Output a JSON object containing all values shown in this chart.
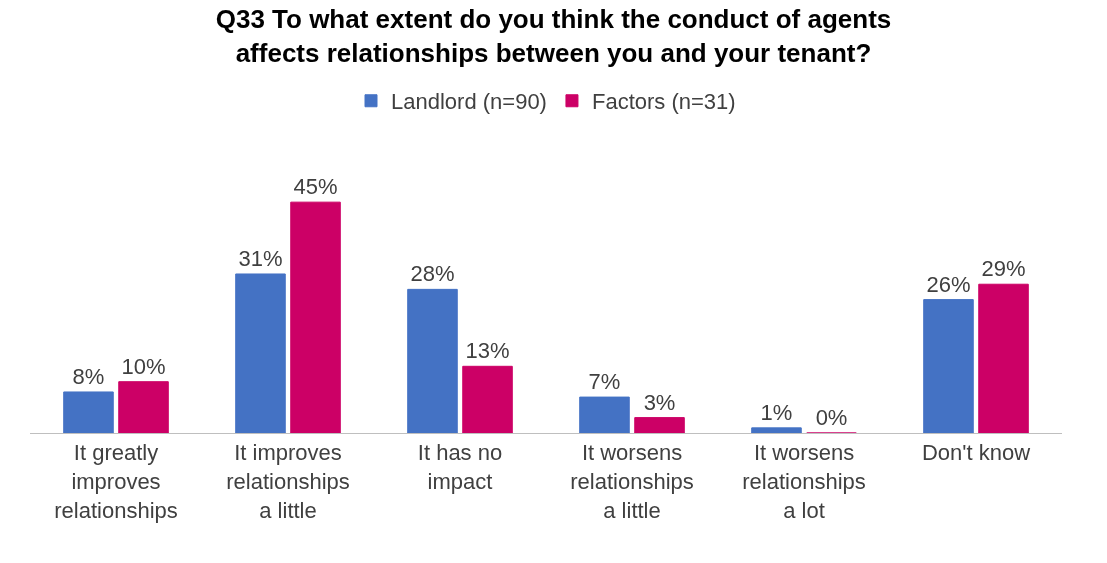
{
  "chart_data": {
    "type": "bar",
    "title": "Q33 To what extent do you think the conduct of agents affects relationships between you and your tenant?",
    "categories": [
      "It greatly improves relationships",
      "It improves relationships a little",
      "It has no impact",
      "It worsens relationships a little",
      "It worsens relationships a lot",
      "Don't know"
    ],
    "series": [
      {
        "name": "Landlord (n=90)",
        "color": "#4472c4",
        "values": [
          8,
          31,
          28,
          7,
          1,
          26
        ],
        "value_labels": [
          "8%",
          "31%",
          "28%",
          "7%",
          "1%",
          "26%"
        ]
      },
      {
        "name": "Factors (n=31)",
        "color": "#cc0066",
        "values": [
          10,
          45,
          13,
          3,
          0,
          29
        ],
        "value_labels": [
          "10%",
          "45%",
          "13%",
          "3%",
          "0%",
          "29%"
        ]
      }
    ],
    "legend": "top"
  }
}
